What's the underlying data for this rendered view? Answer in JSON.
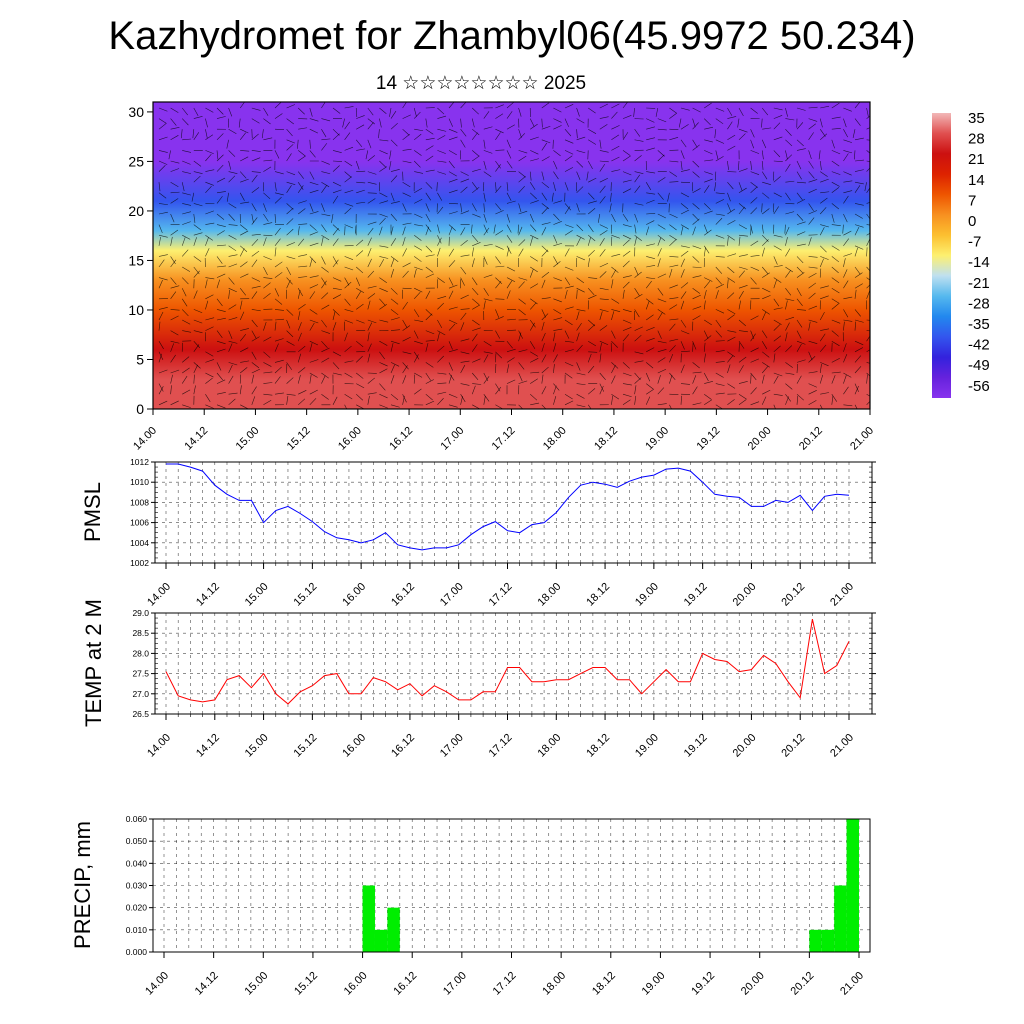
{
  "title": "Kazhydromet for Zhambyl06(45.9972 50.234)",
  "subtitle": "14 ☆☆☆☆☆☆☆☆ 2025",
  "time_ticks": [
    "14.00",
    "14.12",
    "15.00",
    "15.12",
    "16.00",
    "16.12",
    "17.00",
    "17.12",
    "18.00",
    "18.12",
    "19.00",
    "19.12",
    "20.00",
    "20.12",
    "21.00"
  ],
  "colors": {
    "pmsl": "#0000ff",
    "temp": "#ff0000",
    "precip": "#00ee00"
  },
  "colorbar": {
    "labels": [
      "35",
      "28",
      "21",
      "14",
      "7",
      "0",
      "-7",
      "-14",
      "-21",
      "-28",
      "-35",
      "-42",
      "-49",
      "-56"
    ],
    "colors": [
      "#f2b8b8",
      "#e05050",
      "#cc1010",
      "#dd2200",
      "#ee5500",
      "#f79020",
      "#fcc030",
      "#fdf070",
      "#bfe0f0",
      "#55b8ee",
      "#2288ee",
      "#3355ee",
      "#3322dd",
      "#6622dd",
      "#8833ee"
    ]
  },
  "chart_data": [
    {
      "type": "heatmap",
      "title": "",
      "xlabel": "",
      "ylabel": "",
      "x_ticks": [
        "14.00",
        "14.12",
        "15.00",
        "15.12",
        "16.00",
        "16.12",
        "17.00",
        "17.12",
        "18.00",
        "18.12",
        "19.00",
        "19.12",
        "20.00",
        "20.12",
        "21.00"
      ],
      "ylim": [
        0,
        31
      ],
      "y_ticks": [
        0,
        5,
        10,
        15,
        20,
        25,
        30
      ],
      "colorbar_range": [
        -56,
        35
      ],
      "profile": [
        {
          "height": 0,
          "value": 28
        },
        {
          "height": 3,
          "value": 30
        },
        {
          "height": 6,
          "value": 24
        },
        {
          "height": 10,
          "value": 12
        },
        {
          "height": 13,
          "value": 2
        },
        {
          "height": 16,
          "value": -10
        },
        {
          "height": 18,
          "value": -22
        },
        {
          "height": 21,
          "value": -35
        },
        {
          "height": 25,
          "value": -58
        },
        {
          "height": 28,
          "value": -55
        },
        {
          "height": 31,
          "value": -60
        }
      ],
      "wind_barbs": true
    },
    {
      "type": "line",
      "title": "",
      "ylabel": "PMSL",
      "xlabel": "",
      "ylim": [
        1002,
        1012
      ],
      "y_ticks": [
        "1002",
        "1004",
        "1006",
        "1008",
        "1010",
        "1012"
      ],
      "x": [
        0,
        3,
        6,
        9,
        12,
        15,
        18,
        21,
        24,
        27,
        30,
        33,
        36,
        39,
        42,
        45,
        48,
        51,
        54,
        57,
        60,
        63,
        66,
        69,
        72,
        75,
        78,
        81,
        84,
        87,
        90,
        93,
        96,
        99,
        102,
        105,
        108,
        111,
        114,
        117,
        120,
        123,
        126,
        129,
        132,
        135,
        138,
        141,
        144,
        147,
        150,
        153,
        156,
        159,
        162,
        165,
        168
      ],
      "series": [
        {
          "values": [
            1011.8,
            1011.8,
            1011.5,
            1011.1,
            1009.7,
            1008.8,
            1008.2,
            1008.2,
            1006.0,
            1007.2,
            1007.6,
            1006.9,
            1006.1,
            1005.1,
            1004.5,
            1004.3,
            1004.0,
            1004.3,
            1005.0,
            1003.8,
            1003.5,
            1003.3,
            1003.5,
            1003.5,
            1003.8,
            1004.8,
            1005.6,
            1006.1,
            1005.2,
            1005.0,
            1005.8,
            1006.0,
            1007.0,
            1008.5,
            1009.7,
            1010.0,
            1009.8,
            1009.5,
            1010.1,
            1010.5,
            1010.7,
            1011.3,
            1011.4,
            1011.1,
            1010.0,
            1008.8,
            1008.6,
            1008.5,
            1007.6,
            1007.6,
            1008.2,
            1008.0,
            1008.7,
            1007.2,
            1008.6,
            1008.8,
            1008.7
          ]
        }
      ]
    },
    {
      "type": "line",
      "title": "",
      "ylabel": "TEMP at 2 M",
      "xlabel": "",
      "ylim": [
        26.5,
        29.0
      ],
      "y_ticks": [
        "26.5",
        "27.0",
        "27.5",
        "28.0",
        "28.5",
        "29.0"
      ],
      "x": [
        0,
        3,
        6,
        9,
        12,
        15,
        18,
        21,
        24,
        27,
        30,
        33,
        36,
        39,
        42,
        45,
        48,
        51,
        54,
        57,
        60,
        63,
        66,
        69,
        72,
        75,
        78,
        81,
        84,
        87,
        90,
        93,
        96,
        99,
        102,
        105,
        108,
        111,
        114,
        117,
        120,
        123,
        126,
        129,
        132,
        135,
        138,
        141,
        144,
        147,
        150,
        153,
        156,
        159,
        162,
        165,
        168
      ],
      "series": [
        {
          "values": [
            27.55,
            26.95,
            26.85,
            26.8,
            26.85,
            27.35,
            27.45,
            27.15,
            27.5,
            27.0,
            26.75,
            27.05,
            27.2,
            27.45,
            27.5,
            27.0,
            27.0,
            27.4,
            27.3,
            27.1,
            27.25,
            26.95,
            27.2,
            27.05,
            26.85,
            26.85,
            27.05,
            27.05,
            27.65,
            27.65,
            27.3,
            27.3,
            27.35,
            27.35,
            27.5,
            27.65,
            27.65,
            27.35,
            27.35,
            27.0,
            27.3,
            27.6,
            27.3,
            27.3,
            28.0,
            27.85,
            27.8,
            27.55,
            27.6,
            27.95,
            27.75,
            27.3,
            26.9,
            28.85,
            27.5,
            27.7,
            28.3
          ]
        }
      ]
    },
    {
      "type": "bar",
      "title": "",
      "ylabel": "PRECIP, mm",
      "xlabel": "",
      "ylim": [
        0,
        0.06
      ],
      "y_ticks": [
        "0.000",
        "0.010",
        "0.020",
        "0.030",
        "0.040",
        "0.050",
        "0.060"
      ],
      "bars": [
        {
          "x": 48,
          "value": 0.03
        },
        {
          "x": 51,
          "value": 0.01
        },
        {
          "x": 54,
          "value": 0.02
        },
        {
          "x": 156,
          "value": 0.01
        },
        {
          "x": 159,
          "value": 0.01
        },
        {
          "x": 162,
          "value": 0.03
        },
        {
          "x": 165,
          "value": 0.06
        }
      ]
    }
  ]
}
